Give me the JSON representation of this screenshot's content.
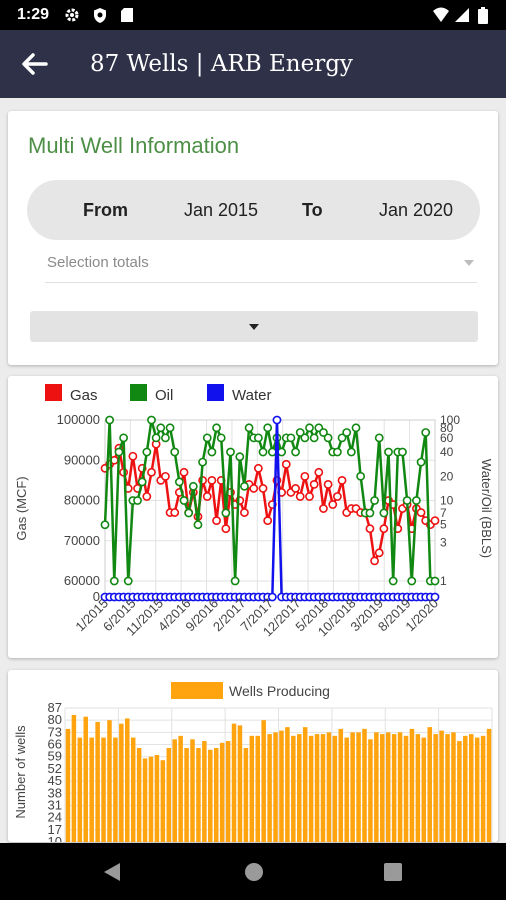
{
  "status": {
    "time": "1:29"
  },
  "appbar": {
    "title": "87 Wells | ARB Energy"
  },
  "card": {
    "title": "Multi Well Information",
    "from_label": "From",
    "from_value": "Jan 2015",
    "to_label": "To",
    "to_value": "Jan 2020",
    "selection_placeholder": "Selection totals"
  },
  "colors": {
    "gas": "#ee1111",
    "oil": "#118811",
    "water": "#1111ee",
    "bars": "#ffa30e",
    "appbar": "#2f3148",
    "title_green": "#4d8f46"
  },
  "chart_data": [
    {
      "type": "line",
      "legend": [
        "Gas",
        "Oil",
        "Water"
      ],
      "legend_position": "top-left",
      "ylabel": "Gas (MCF)",
      "y2label": "Water/Oil (BBLS)",
      "y_ticks": [
        "0",
        "60000",
        "70000",
        "80000",
        "90000",
        "100000"
      ],
      "y2_ticks": [
        "1",
        "3",
        "5",
        "7",
        "10",
        "20",
        "40",
        "60",
        "80",
        "100"
      ],
      "x_ticks": [
        "1/2015",
        "6/2015",
        "11/2015",
        "4/2016",
        "9/2016",
        "2/2017",
        "7/2017",
        "12/2017",
        "5/2018",
        "10/2018",
        "3/2019",
        "8/2019",
        "1/2020"
      ],
      "x_range": [
        "1/2015",
        "1/2020"
      ],
      "grid": true,
      "series": [
        {
          "name": "Gas",
          "values": [
            88000,
            89000,
            90000,
            93000,
            87000,
            83000,
            91000,
            83000,
            88000,
            81000,
            87000,
            94000,
            85000,
            86000,
            77000,
            77000,
            82000,
            87000,
            77000,
            82000,
            76000,
            85000,
            81000,
            85000,
            75000,
            85000,
            73000,
            82000,
            79000,
            80000,
            77000,
            84000,
            83000,
            88000,
            83000,
            75000,
            79000,
            85000,
            82000,
            89000,
            82000,
            83000,
            81000,
            86000,
            81000,
            84000,
            87000,
            78000,
            84000,
            79000,
            81000,
            85000,
            77000,
            78000,
            78000,
            77000,
            77000,
            73000,
            65000,
            67000,
            73000,
            80000,
            79000,
            73000,
            78000,
            79000,
            73000,
            78000,
            77000,
            75000,
            74000,
            75000
          ]
        },
        {
          "name": "Oil",
          "values": [
            5,
            100,
            1,
            40,
            60,
            1,
            10,
            10,
            17,
            40,
            100,
            60,
            80,
            60,
            80,
            40,
            17,
            10,
            7,
            15,
            5,
            30,
            60,
            40,
            80,
            60,
            7,
            40,
            1,
            35,
            15,
            80,
            60,
            60,
            40,
            80,
            40,
            60,
            40,
            60,
            60,
            40,
            70,
            60,
            80,
            60,
            80,
            70,
            60,
            40,
            40,
            60,
            70,
            40,
            80,
            20,
            7,
            7,
            10,
            60,
            7,
            40,
            1,
            40,
            40,
            10,
            1,
            10,
            30,
            70,
            1,
            1
          ]
        },
        {
          "name": "Water",
          "values": [
            0,
            0,
            0,
            0,
            0,
            0,
            0,
            0,
            0,
            0,
            0,
            0,
            0,
            0,
            0,
            0,
            0,
            0,
            0,
            0,
            0,
            0,
            0,
            0,
            0,
            0,
            0,
            0,
            0,
            0,
            0,
            0,
            0,
            0,
            0,
            0,
            0,
            100,
            0,
            0,
            0,
            0,
            0,
            0,
            0,
            0,
            0,
            0,
            0,
            0,
            0,
            0,
            0,
            0,
            0,
            0,
            0,
            0,
            0,
            0,
            0,
            0,
            0,
            0,
            0,
            0,
            0,
            0,
            0,
            0,
            0,
            0
          ]
        }
      ]
    },
    {
      "type": "bar",
      "legend": [
        "Wells Producing"
      ],
      "legend_position": "top-center",
      "ylabel": "Number of wells",
      "y_ticks": [
        "10",
        "17",
        "24",
        "31",
        "38",
        "45",
        "52",
        "59",
        "66",
        "73",
        "80",
        "87"
      ],
      "ylim": [
        10,
        87
      ],
      "grid": true,
      "series": [
        {
          "name": "Wells Producing",
          "values": [
            75,
            83,
            70,
            82,
            70,
            79,
            70,
            80,
            70,
            78,
            81,
            70,
            64,
            58,
            59,
            60,
            57,
            64,
            69,
            71,
            64,
            69,
            64,
            68,
            63,
            64,
            67,
            68,
            78,
            77,
            64,
            71,
            71,
            80,
            72,
            73,
            74,
            76,
            71,
            72,
            76,
            71,
            72,
            72,
            73,
            71,
            75,
            70,
            73,
            73,
            75,
            69,
            73,
            72,
            73,
            72,
            73,
            71,
            75,
            72,
            70,
            76,
            72,
            74,
            72,
            73,
            68,
            71,
            72,
            70,
            71,
            75
          ]
        }
      ]
    }
  ]
}
